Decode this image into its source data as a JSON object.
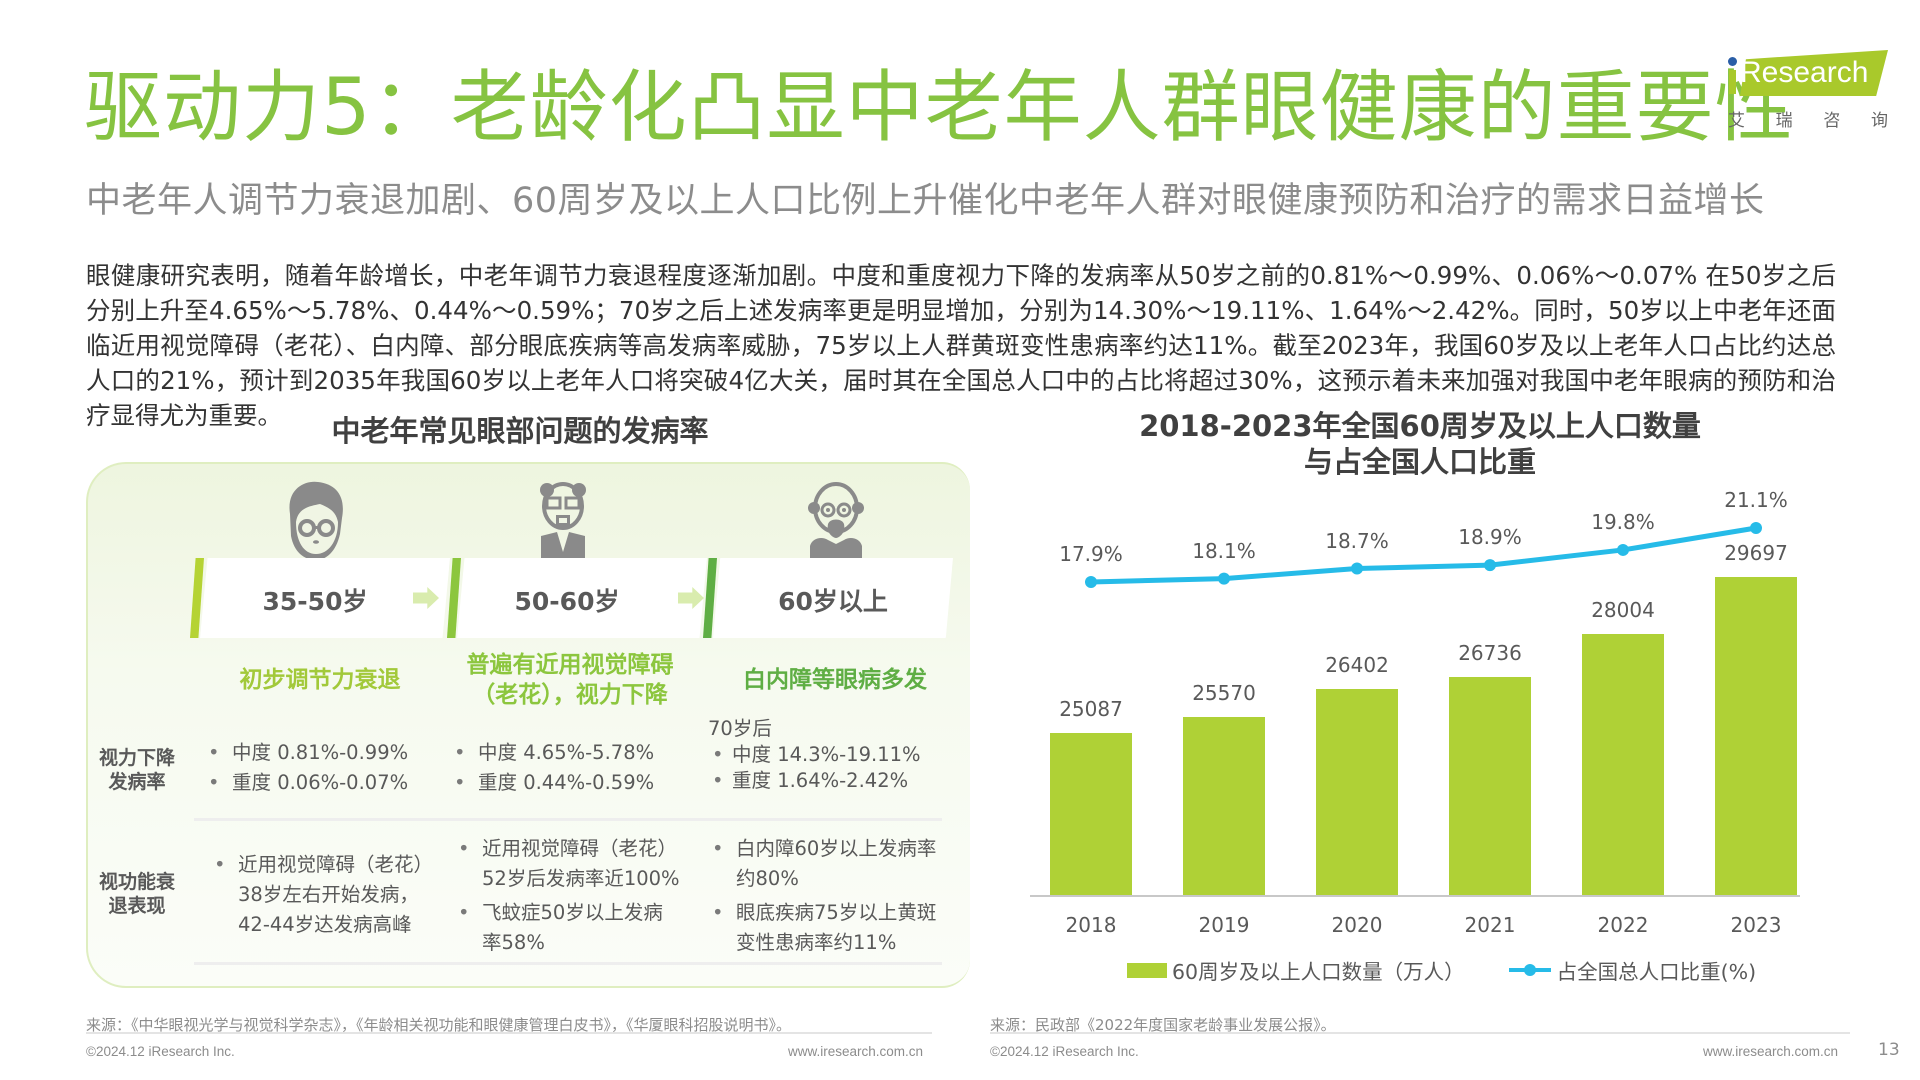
{
  "header": {
    "title": "驱动力5：老龄化凸显中老年人群眼健康的重要性",
    "subtitle": "中老年人调节力衰退加剧、60周岁及以上人口比例上升催化中老年人群对眼健康预防和治疗的需求日益增长"
  },
  "logo": {
    "text": "Research",
    "cn": [
      "艾",
      "瑞",
      "咨",
      "询"
    ],
    "brand_color": "#a9c92b",
    "dot_color": "#2a5ea7"
  },
  "intro": "眼健康研究表明，随着年龄增长，中老年调节力衰退程度逐渐加剧。中度和重度视力下降的发病率从50岁之前的0.81%～0.99%、0.06%～0.07% 在50岁之后分别上升至4.65%～5.78%、0.44%～0.59%；70岁之后上述发病率更是明显增加，分别为14.30%～19.11%、1.64%～2.42%。同时，50岁以上中老年还面临近用视觉障碍（老花）、白内障、部分眼底疾病等高发病率威胁，75岁以上人群黄斑变性患病率约达11%。截至2023年，我国60岁及以上老年人口占比约达总人口的21%，预计到2035年我国60岁以上老年人口将突破4亿大关，届时其在全国总人口中的占比将超过30%，这预示着未来加强对我国中老年眼病的预防和治疗显得尤为重要。",
  "left_panel": {
    "title": "中老年常见眼部问题的发病率",
    "stages": [
      {
        "label": "35-50岁",
        "icon": "person-with-glasses-icon",
        "bar_color": "#b5d334",
        "heading": "初步调节力衰退",
        "heading_color": "#a2c93a"
      },
      {
        "label": "50-60岁",
        "icon": "older-man-with-glasses-icon",
        "bar_color": "#8cc63e",
        "heading": "普遍有近用视觉障碍（老花），视力下降",
        "heading_lines": [
          "普遍有近用视觉障碍",
          "（老花），视力下降"
        ],
        "heading_color": "#8cc63e"
      },
      {
        "label": "60岁以上",
        "icon": "elderly-bald-man-icon",
        "bar_color": "#5fae44",
        "heading": "白内障等眼病多发",
        "heading_color": "#5fae44"
      }
    ],
    "rows": [
      {
        "label_lines": [
          "视力下降",
          "发病率"
        ],
        "cells": [
          {
            "prefix": "",
            "items": [
              "中度 0.81%-0.99%",
              "重度 0.06%-0.07%"
            ]
          },
          {
            "prefix": "",
            "items": [
              "中度 4.65%-5.78%",
              "重度 0.44%-0.59%"
            ]
          },
          {
            "prefix": "70岁后",
            "items": [
              "中度 14.3%-19.11%",
              "重度 1.64%-2.42%"
            ]
          }
        ]
      },
      {
        "label_lines": [
          "视功能衰",
          "退表现"
        ],
        "cells": [
          {
            "items": [
              "近用视觉障碍（老花）38岁左右开始发病，42-44岁达发病高峰"
            ],
            "item_lines": [
              [
                "近用视觉障碍（老花）",
                "38岁左右开始发病，",
                "42-44岁达发病高峰"
              ]
            ]
          },
          {
            "items": [
              "近用视觉障碍（老花）52岁后发病率近100%",
              "飞蚊症50岁以上发病率58%"
            ],
            "item_lines": [
              [
                "近用视觉障碍（老花）",
                "52岁后发病率近100%"
              ],
              [
                "飞蚊症50岁以上发病",
                "率58%"
              ]
            ]
          },
          {
            "items": [
              "白内障60岁以上发病率约80%",
              "眼底疾病75岁以上黄斑变性患病率约11%"
            ],
            "item_lines": [
              [
                "白内障60岁以上发病率",
                "约80%"
              ],
              [
                "眼底疾病75岁以上黄斑",
                "变性患病率约11%"
              ]
            ]
          }
        ]
      }
    ]
  },
  "chart_data": {
    "type": "bar+line",
    "title": "2018-2023年全国60周岁及以上人口数量与占全国人口比重",
    "title_lines": [
      "2018-2023年全国60周岁及以上人口数量",
      "与占全国人口比重"
    ],
    "categories": [
      "2018",
      "2019",
      "2020",
      "2021",
      "2022",
      "2023"
    ],
    "series": [
      {
        "name": "60周岁及以上人口数量（万人）",
        "type": "bar",
        "color": "#afd136",
        "values": [
          25087,
          25570,
          26402,
          26736,
          28004,
          29697
        ]
      },
      {
        "name": "占全国总人口比重(%)",
        "type": "line",
        "color": "#26bbe8",
        "values": [
          17.9,
          18.1,
          18.7,
          18.9,
          19.8,
          21.1
        ],
        "labels": [
          "17.9%",
          "18.1%",
          "18.7%",
          "18.9%",
          "19.8%",
          "21.1%"
        ]
      }
    ],
    "xlabel": "",
    "ylabel": "",
    "grid": false,
    "legend_position": "bottom"
  },
  "footer": {
    "left_source": "来源：《中华眼视光学与视觉科学杂志》，《年龄相关视功能和眼健康管理白皮书》，《华厦眼科招股说明书》。",
    "right_source": "来源：民政部《2022年度国家老龄事业发展公报》。",
    "copyright": "©2024.12 iResearch Inc.",
    "website": "www.iresearch.com.cn",
    "page_number": "13"
  }
}
